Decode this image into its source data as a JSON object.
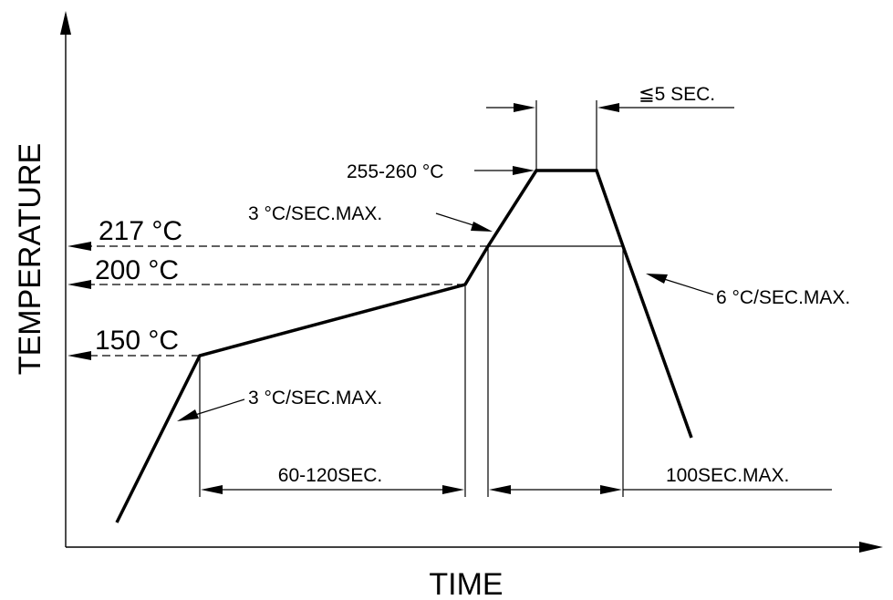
{
  "axes": {
    "x_label": "TIME",
    "y_label": "TEMPERATURE"
  },
  "temperatures": {
    "t217": "217 °C",
    "t200": "200 °C",
    "t150": "150 °C",
    "peak": "255-260 °C"
  },
  "annotations": {
    "ramp_up_lower": "3 °C/SEC.MAX.",
    "ramp_up_upper": "3 °C/SEC.MAX.",
    "ramp_down": "6 °C/SEC.MAX.",
    "peak_duration": "≦5 SEC.",
    "soak_duration": "60-120SEC.",
    "above_217_duration": "100SEC.MAX."
  },
  "colors": {
    "line": "#000000",
    "background": "#ffffff"
  }
}
